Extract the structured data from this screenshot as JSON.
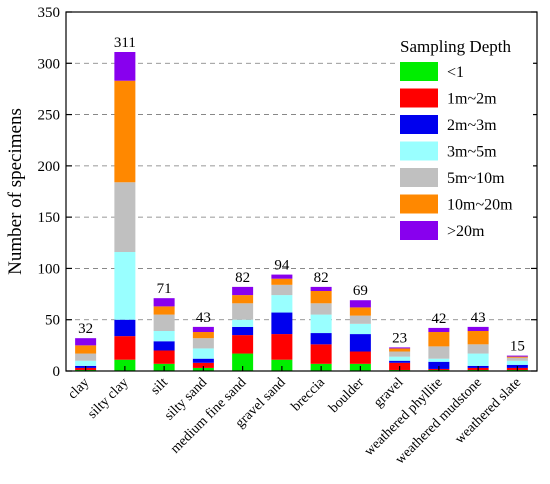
{
  "chart_data": {
    "type": "bar",
    "stacked": true,
    "title": "",
    "xlabel": "",
    "ylabel": "Number of  specimens",
    "ylim": [
      0,
      350
    ],
    "yticks": [
      0,
      50,
      100,
      150,
      200,
      250,
      300,
      350
    ],
    "grid": "horizontal-dashed",
    "legend": {
      "title": "Sampling Depth",
      "position": "top-right"
    },
    "categories": [
      "clay",
      "silty clay",
      "silt",
      "silty sand",
      "medium fine sand",
      "gravel sand",
      "breccia",
      "boulder",
      "gravel",
      "weathered phyllite",
      "weathered mudstone",
      "weathered slate"
    ],
    "totals": [
      32,
      311,
      71,
      43,
      82,
      94,
      82,
      69,
      23,
      42,
      43,
      15
    ],
    "series": [
      {
        "name": "<1",
        "color": "#00ee00",
        "values": [
          1,
          11,
          7,
          3,
          17,
          11,
          7,
          7,
          1,
          1,
          1,
          1
        ]
      },
      {
        "name": "1m~2m",
        "color": "#ff0000",
        "values": [
          2,
          23,
          13,
          5,
          18,
          25,
          19,
          12,
          7,
          1,
          2,
          2
        ]
      },
      {
        "name": "2m~3m",
        "color": "#0000ee",
        "values": [
          2,
          16,
          9,
          4,
          8,
          21,
          11,
          17,
          2,
          7,
          2,
          3
        ]
      },
      {
        "name": "3m~5m",
        "color": "#99ffff",
        "values": [
          5,
          66,
          10,
          10,
          7,
          17,
          18,
          10,
          4,
          3,
          12,
          4
        ]
      },
      {
        "name": "5m~10m",
        "color": "#c0c0c0",
        "values": [
          7,
          68,
          16,
          10,
          16,
          10,
          11,
          8,
          5,
          12,
          9,
          3
        ]
      },
      {
        "name": "10m~20m",
        "color": "#ff8800",
        "values": [
          8,
          99,
          8,
          6,
          8,
          6,
          12,
          8,
          3,
          14,
          13,
          1
        ]
      },
      {
        "name": ">20m",
        "color": "#8800ee",
        "values": [
          7,
          28,
          8,
          5,
          8,
          4,
          4,
          7,
          1,
          4,
          4,
          1
        ]
      }
    ]
  }
}
